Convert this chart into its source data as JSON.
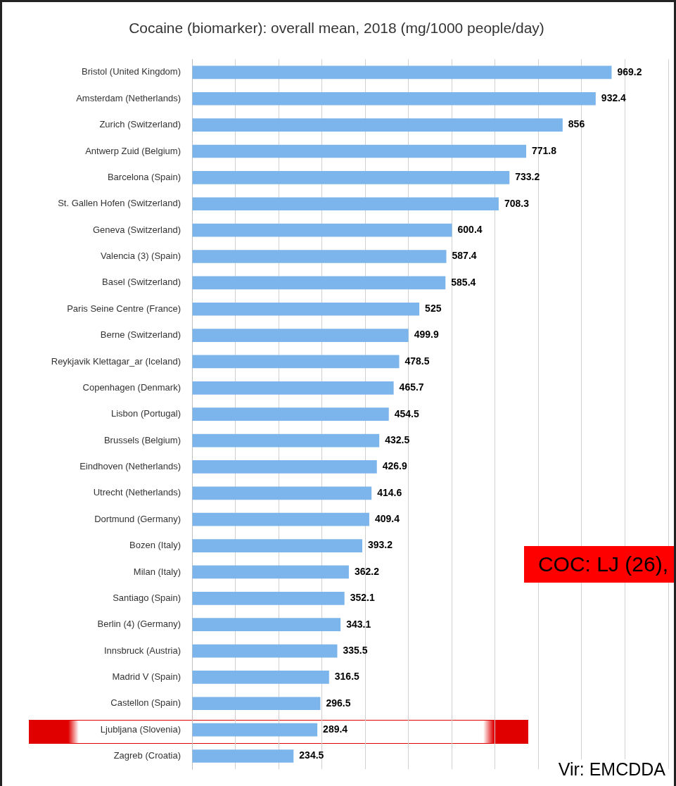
{
  "chart_data": {
    "type": "bar",
    "orientation": "horizontal",
    "title": "Cocaine (biomarker): overall mean, 2018 (mg/1000 people/day)",
    "categories": [
      "Bristol (United Kingdom)",
      "Amsterdam (Netherlands)",
      "Zurich (Switzerland)",
      "Antwerp Zuid (Belgium)",
      "Barcelona (Spain)",
      "St. Gallen Hofen (Switzerland)",
      "Geneva (Switzerland)",
      "Valencia (3) (Spain)",
      "Basel (Switzerland)",
      "Paris Seine Centre (France)",
      "Berne (Switzerland)",
      "Reykjavik Klettagar_ar (Iceland)",
      "Copenhagen (Denmark)",
      "Lisbon (Portugal)",
      "Brussels (Belgium)",
      "Eindhoven (Netherlands)",
      "Utrecht (Netherlands)",
      "Dortmund (Germany)",
      "Bozen (Italy)",
      "Milan (Italy)",
      "Santiago (Spain)",
      "Berlin (4) (Germany)",
      "Innsbruck (Austria)",
      "Madrid V (Spain)",
      "Castellon (Spain)",
      "Ljubljana (Slovenia)",
      "Zagreb (Croatia)"
    ],
    "values": [
      969.2,
      932.4,
      856,
      771.8,
      733.2,
      708.3,
      600.4,
      587.4,
      585.4,
      525,
      499.9,
      478.5,
      465.7,
      454.5,
      432.5,
      426.9,
      414.6,
      409.4,
      393.2,
      362.2,
      352.1,
      343.1,
      335.5,
      316.5,
      296.5,
      289.4,
      234.5
    ],
    "color": "#7cb5ec",
    "xlim": [
      0,
      1100
    ],
    "xticks": [
      {
        "value": 0,
        "label": null
      },
      {
        "value": 100,
        "label": null
      },
      {
        "value": 200,
        "label": null
      },
      {
        "value": 300,
        "label": null
      },
      {
        "value": 400,
        "label": null
      },
      {
        "value": 500,
        "label": null
      },
      {
        "value": 600,
        "label": null
      },
      {
        "value": 700,
        "label": null
      },
      {
        "value": 800,
        "label": null
      },
      {
        "value": 900,
        "label": null
      },
      {
        "value": 1000,
        "label": null
      },
      {
        "value": 1100,
        "label": null
      }
    ],
    "bands": [
      {
        "axis": "y",
        "from": "Ljubljana (Slovenia)",
        "to": "Ljubljana (Slovenia)",
        "color": "#e00000"
      }
    ],
    "grid": "x",
    "tick_labels": "y",
    "data_labels": true,
    "legend": false,
    "annotations": [
      "COC: LJ (26),",
      "Vir: EMCDDA"
    ]
  }
}
